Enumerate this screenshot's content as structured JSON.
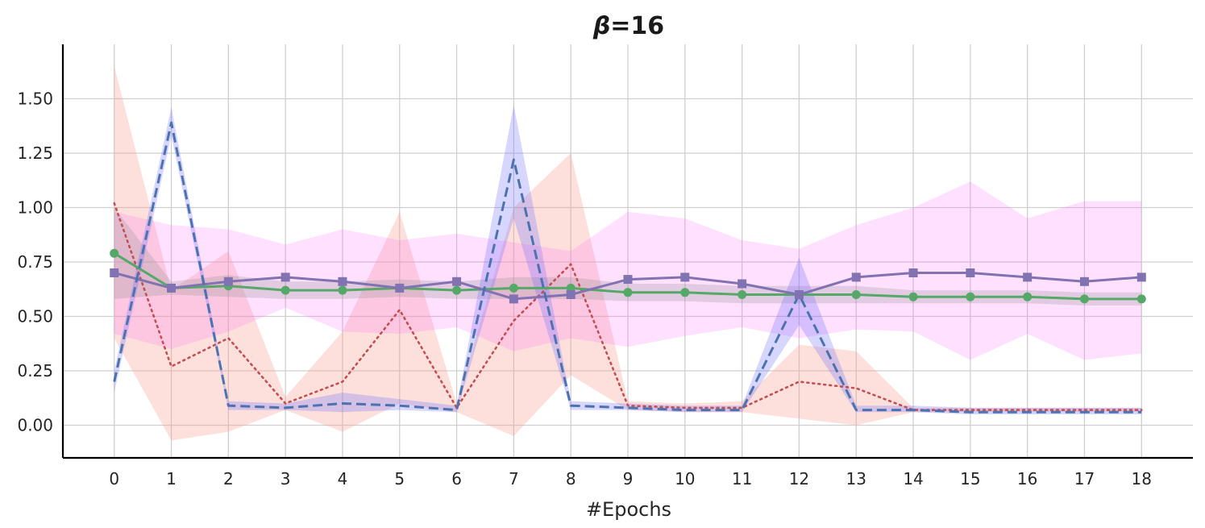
{
  "chart_data": {
    "type": "line",
    "title_symbol": "β",
    "title_value": "=16",
    "xlabel": "#Epochs",
    "ylabel": "",
    "x": [
      0,
      1,
      2,
      3,
      4,
      5,
      6,
      7,
      8,
      9,
      10,
      11,
      12,
      13,
      14,
      15,
      16,
      17,
      18
    ],
    "xlim": [
      -0.9,
      18.9
    ],
    "ylim": [
      -0.15,
      1.75
    ],
    "yticks": [
      0.0,
      0.25,
      0.5,
      0.75,
      1.0,
      1.25,
      1.5
    ],
    "ytick_labels": [
      "0.00",
      "0.25",
      "0.50",
      "0.75",
      "1.00",
      "1.25",
      "1.50"
    ],
    "xtick_labels": [
      "0",
      "1",
      "2",
      "3",
      "4",
      "5",
      "6",
      "7",
      "8",
      "9",
      "10",
      "11",
      "12",
      "13",
      "14",
      "15",
      "16",
      "17",
      "18"
    ],
    "grid": true,
    "legend": "none",
    "series": [
      {
        "name": "dotted-red",
        "color": "#c44e52",
        "band_color": "#f8a090",
        "band_opacity": 0.32,
        "style": "dotted",
        "marker": "none",
        "values": [
          1.02,
          0.27,
          0.4,
          0.1,
          0.2,
          0.53,
          0.08,
          0.48,
          0.74,
          0.09,
          0.08,
          0.08,
          0.2,
          0.17,
          0.07,
          0.07,
          0.07,
          0.07,
          0.07
        ],
        "lower": [
          0.4,
          -0.07,
          -0.03,
          0.07,
          -0.03,
          0.1,
          0.06,
          -0.05,
          0.23,
          0.07,
          0.06,
          0.06,
          0.03,
          0.0,
          0.06,
          0.06,
          0.06,
          0.06,
          0.06
        ],
        "upper": [
          1.65,
          0.62,
          0.8,
          0.13,
          0.43,
          0.98,
          0.1,
          1.0,
          1.25,
          0.11,
          0.1,
          0.11,
          0.37,
          0.34,
          0.08,
          0.08,
          0.08,
          0.08,
          0.08
        ]
      },
      {
        "name": "magenta-band",
        "color": "#ff66ff",
        "band_color": "#ff66ff",
        "band_opacity": 0.2,
        "style": "none",
        "marker": "none",
        "values": [
          0.7,
          0.63,
          0.66,
          0.68,
          0.66,
          0.63,
          0.66,
          0.58,
          0.6,
          0.67,
          0.68,
          0.65,
          0.6,
          0.68,
          0.7,
          0.7,
          0.68,
          0.66,
          0.68
        ],
        "lower": [
          0.42,
          0.35,
          0.43,
          0.54,
          0.43,
          0.42,
          0.45,
          0.34,
          0.4,
          0.36,
          0.41,
          0.45,
          0.4,
          0.44,
          0.43,
          0.3,
          0.42,
          0.3,
          0.33
        ],
        "upper": [
          0.98,
          0.92,
          0.9,
          0.83,
          0.9,
          0.85,
          0.88,
          0.84,
          0.8,
          0.98,
          0.95,
          0.85,
          0.81,
          0.92,
          1.0,
          1.12,
          0.95,
          1.03,
          1.03
        ]
      },
      {
        "name": "green-circles",
        "color": "#55a868",
        "band_color": "#8c8c8c",
        "band_opacity": 0.25,
        "style": "solid",
        "marker": "circle",
        "values": [
          0.79,
          0.63,
          0.64,
          0.62,
          0.62,
          0.63,
          0.62,
          0.63,
          0.63,
          0.61,
          0.61,
          0.6,
          0.6,
          0.6,
          0.59,
          0.59,
          0.59,
          0.58,
          0.58
        ],
        "lower": [
          0.58,
          0.6,
          0.59,
          0.58,
          0.58,
          0.59,
          0.58,
          0.58,
          0.58,
          0.57,
          0.57,
          0.56,
          0.56,
          0.56,
          0.56,
          0.56,
          0.56,
          0.55,
          0.55
        ],
        "upper": [
          1.0,
          0.66,
          0.69,
          0.66,
          0.66,
          0.67,
          0.66,
          0.68,
          0.68,
          0.65,
          0.65,
          0.64,
          0.64,
          0.64,
          0.62,
          0.62,
          0.62,
          0.61,
          0.61
        ]
      },
      {
        "name": "purple-squares",
        "color": "#8172b2",
        "band_color": "#8172b2",
        "band_opacity": 0.0,
        "style": "solid",
        "marker": "square",
        "values": [
          0.7,
          0.63,
          0.66,
          0.68,
          0.66,
          0.63,
          0.66,
          0.58,
          0.6,
          0.67,
          0.68,
          0.65,
          0.6,
          0.68,
          0.7,
          0.7,
          0.68,
          0.66,
          0.68
        ],
        "lower": [
          0.7,
          0.63,
          0.66,
          0.68,
          0.66,
          0.63,
          0.66,
          0.58,
          0.6,
          0.67,
          0.68,
          0.65,
          0.6,
          0.68,
          0.7,
          0.7,
          0.68,
          0.66,
          0.68
        ],
        "upper": [
          0.7,
          0.63,
          0.66,
          0.68,
          0.66,
          0.63,
          0.66,
          0.58,
          0.6,
          0.67,
          0.68,
          0.65,
          0.6,
          0.68,
          0.7,
          0.7,
          0.68,
          0.66,
          0.68
        ]
      },
      {
        "name": "dashed-blue",
        "color": "#4c72b0",
        "band_color": "#6a6aff",
        "band_opacity": 0.28,
        "style": "dashed",
        "marker": "none",
        "values": [
          0.2,
          1.39,
          0.09,
          0.08,
          0.1,
          0.09,
          0.07,
          1.22,
          0.09,
          0.08,
          0.07,
          0.07,
          0.6,
          0.07,
          0.07,
          0.06,
          0.06,
          0.06,
          0.06
        ],
        "lower": [
          0.15,
          1.33,
          0.07,
          0.07,
          0.06,
          0.07,
          0.06,
          0.95,
          0.07,
          0.07,
          0.06,
          0.06,
          0.46,
          0.06,
          0.06,
          0.05,
          0.05,
          0.05,
          0.05
        ],
        "upper": [
          0.25,
          1.46,
          0.11,
          0.1,
          0.15,
          0.12,
          0.09,
          1.47,
          0.11,
          0.1,
          0.09,
          0.09,
          0.77,
          0.09,
          0.09,
          0.08,
          0.08,
          0.08,
          0.08
        ]
      }
    ]
  }
}
